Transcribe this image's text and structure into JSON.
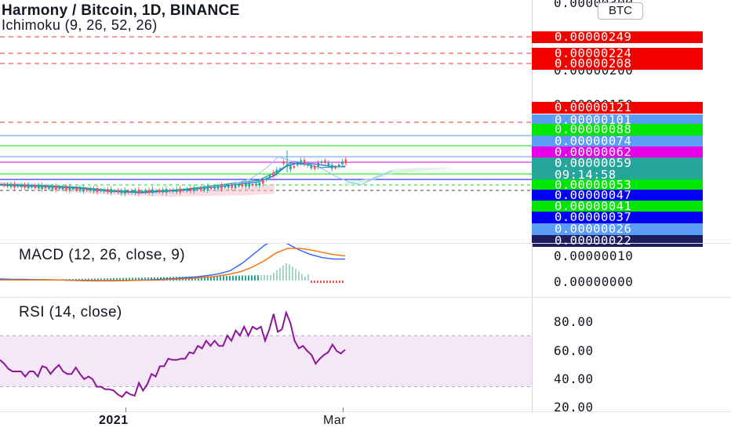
{
  "header": {
    "symbol_title": "Harmony / Bitcoin, 1D, BINANCE",
    "indicator": "Ichimoku (9, 26, 52, 26)",
    "currency_button": "BTC"
  },
  "macd": {
    "label": "MACD (12, 26, close, 9)",
    "ticks": [
      "0.00000010",
      "0.00000000"
    ]
  },
  "rsi": {
    "label": "RSI (14, close)",
    "ticks": [
      "80.00",
      "60.00",
      "40.00",
      "20.00"
    ]
  },
  "price_axis": {
    "top_partial": "0.00000300",
    "hidden_a": "0.00000200",
    "hidden_b": "0.00000150"
  },
  "price_tags": [
    {
      "value": "0.00000249",
      "color": "#f20000"
    },
    {
      "value": "0.00000224",
      "color": "#f20000"
    },
    {
      "value": "0.00000208",
      "color": "#f20000"
    },
    {
      "value": "0.00000121",
      "color": "#f20000"
    },
    {
      "value": "0.00000101",
      "color": "#5b9cf6"
    },
    {
      "value": "0.00000088",
      "color": "#00e600"
    },
    {
      "value": "0.00000074",
      "color": "#5b9cf6"
    },
    {
      "value": "0.00000062",
      "color": "#e600e6"
    },
    {
      "value": "0.00000059",
      "color": "#26a69a",
      "countdown": "09:14:58"
    },
    {
      "value": "0.00000053",
      "color": "#00e600"
    },
    {
      "value": "0.00000047",
      "color": "#0000f2"
    },
    {
      "value": "0.00000041",
      "color": "#00e600"
    },
    {
      "value": "0.00000037",
      "color": "#0000f2"
    },
    {
      "value": "0.00000026",
      "color": "#5b9cf6"
    },
    {
      "value": "0.00000022",
      "color": "#1c1c5e"
    }
  ],
  "time_axis": {
    "labels": [
      "2021",
      "Mar"
    ]
  },
  "chart_data": [
    {
      "type": "line",
      "title": "RSI (14, close)",
      "ylim": [
        15,
        90
      ],
      "bands": [
        30,
        70
      ],
      "values": [
        51,
        48,
        44,
        42,
        42,
        42,
        38,
        42,
        42,
        38,
        46,
        45,
        40,
        44,
        47,
        42,
        40,
        40,
        45,
        40,
        36,
        38,
        36,
        30,
        30,
        28,
        28,
        27,
        24,
        22,
        26,
        24,
        23,
        33,
        27,
        32,
        40,
        38,
        46,
        46,
        52,
        51,
        51,
        52,
        52,
        57,
        56,
        62,
        60,
        66,
        62,
        66,
        62,
        62,
        70,
        66,
        74,
        70,
        77,
        70,
        77,
        75,
        77,
        66,
        75,
        87,
        73,
        75,
        88,
        80,
        66,
        60,
        62,
        58,
        55,
        48,
        52,
        55,
        57,
        63,
        58,
        56,
        59
      ]
    },
    {
      "type": "line",
      "title": "MACD (12, 26, close, 9)",
      "series": [
        {
          "name": "",
          "values": [
            0.5,
            0.4,
            0.4,
            0.3,
            0.3,
            0.2,
            0.1,
            0.0,
            -0.1,
            -0.1,
            -0.1,
            0.0,
            0.1,
            0.2,
            0.4,
            0.6,
            0.9,
            1.2,
            1.6,
            2.2,
            3.2,
            5.5,
            8.5,
            11.5,
            13.5,
            12.0,
            10.0,
            8.5,
            7.5,
            7.0,
            7.0
          ]
        },
        {
          "name": "",
          "values": [
            0.2,
            0.2,
            0.2,
            0.2,
            0.2,
            0.2,
            0.1,
            0.1,
            0.0,
            0.0,
            0.0,
            0.0,
            0.1,
            0.1,
            0.2,
            0.4,
            0.6,
            0.8,
            1.1,
            1.5,
            2.1,
            3.0,
            4.5,
            6.5,
            9.0,
            10.5,
            10.5,
            10.0,
            9.2,
            8.5,
            8.0
          ]
        }
      ]
    }
  ]
}
